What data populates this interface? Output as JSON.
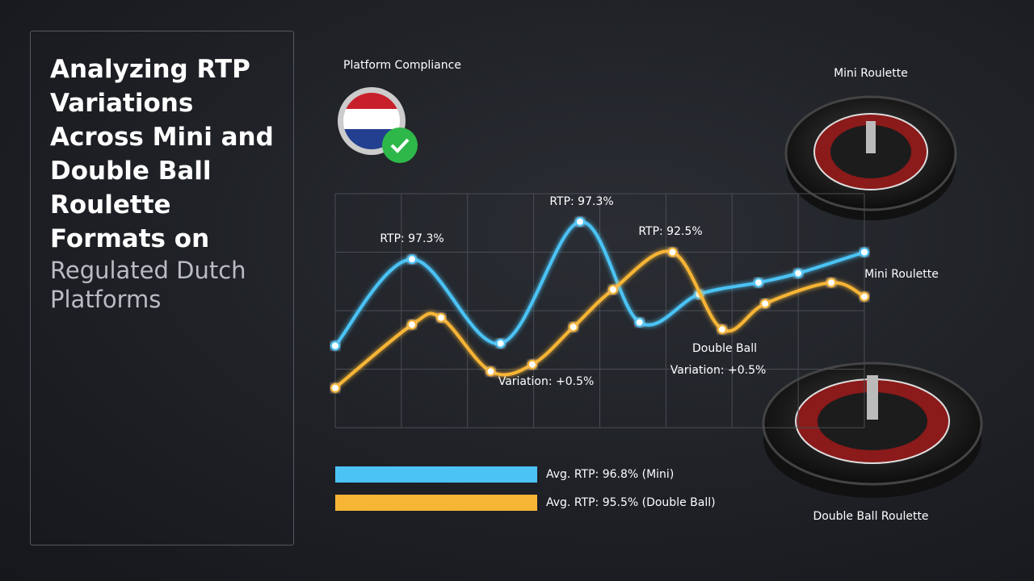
{
  "header": {
    "title": "Analyzing RTP Variations Across Mini and Double Ball Roulette Formats on",
    "subtitle": "Regulated Dutch Platforms"
  },
  "compliance": {
    "label": "Platform Compliance"
  },
  "images": {
    "top_caption": "Mini Roulette",
    "bottom_caption": "Double Ball Roulette"
  },
  "chart_data": {
    "type": "line",
    "xlim": [
      0,
      8
    ],
    "ylim": [
      0,
      100
    ],
    "grid": true,
    "series": [
      {
        "name": "Mini Roulette",
        "color": "#4cc3f5",
        "x": [
          0,
          1.16,
          2.5,
          3.7,
          4.6,
          5.5,
          6.4,
          7,
          8
        ],
        "values": [
          35,
          72,
          36,
          88,
          45,
          57,
          62,
          66,
          75
        ]
      },
      {
        "name": "Double Ball",
        "color": "#f7b536",
        "x": [
          0,
          1.16,
          1.6,
          2.35,
          2.98,
          3.6,
          4.2,
          5.1,
          5.85,
          6.5,
          7.5,
          8
        ],
        "values": [
          17,
          44,
          47,
          24,
          27,
          43,
          59,
          75,
          42,
          53,
          62,
          56
        ]
      }
    ],
    "annotations": [
      "RTP: 97.3%",
      "RTP: 97.3%",
      "RTP: 92.5%",
      "Variation: +0.5%",
      "Variation: +0.5%"
    ],
    "legend": [
      "Avg. RTP: 96.8% (Mini)",
      "Avg. RTP: 95.5% (Double Ball)"
    ]
  }
}
